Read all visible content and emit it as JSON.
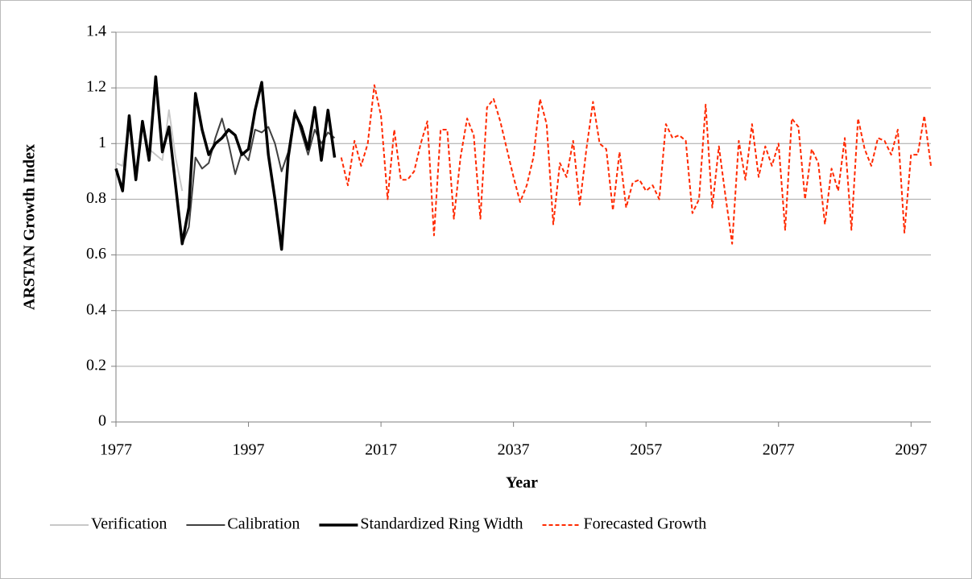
{
  "chart_data": {
    "type": "line",
    "x_label": "Year",
    "y_label": "ARSTAN Growth Index",
    "xlim": [
      1977,
      2100
    ],
    "xticks": [
      1977,
      1997,
      2017,
      2037,
      2057,
      2077,
      2097
    ],
    "ylim": [
      0,
      1.4
    ],
    "yticks": [
      0,
      0.2,
      0.4,
      0.6,
      0.8,
      1,
      1.2,
      1.4
    ],
    "grid": true,
    "legend": "bottom",
    "series": [
      {
        "name": "Verification",
        "color": "#c8c8c8",
        "width": 2,
        "dash": false,
        "x": [
          1977,
          1978,
          1979,
          1980,
          1981,
          1982,
          1983,
          1984,
          1985,
          1986,
          1987
        ],
        "values": [
          0.93,
          0.92,
          1.08,
          0.9,
          1.07,
          0.98,
          0.96,
          0.94,
          1.12,
          0.95,
          0.83
        ]
      },
      {
        "name": "Calibration",
        "color": "#404040",
        "width": 2,
        "dash": false,
        "x": [
          1987,
          1988,
          1989,
          1990,
          1991,
          1992,
          1993,
          1994,
          1995,
          1996,
          1997,
          1998,
          1999,
          2000,
          2001,
          2002,
          2003,
          2004,
          2005,
          2006,
          2007,
          2008,
          2009,
          2010
        ],
        "values": [
          0.64,
          0.7,
          0.95,
          0.91,
          0.93,
          1.02,
          1.09,
          1.0,
          0.89,
          0.97,
          0.94,
          1.05,
          1.04,
          1.06,
          1.0,
          0.9,
          0.97,
          1.12,
          1.04,
          0.96,
          1.05,
          1.0,
          1.04,
          1.02
        ]
      },
      {
        "name": "Standardized Ring Width",
        "color": "#000000",
        "width": 3.5,
        "dash": false,
        "x": [
          1977,
          1978,
          1979,
          1980,
          1981,
          1982,
          1983,
          1984,
          1985,
          1986,
          1987,
          1988,
          1989,
          1990,
          1991,
          1992,
          1993,
          1994,
          1995,
          1996,
          1997,
          1998,
          1999,
          2000,
          2001,
          2002,
          2003,
          2004,
          2005,
          2006,
          2007,
          2008,
          2009,
          2010
        ],
        "values": [
          0.91,
          0.83,
          1.1,
          0.87,
          1.08,
          0.94,
          1.24,
          0.97,
          1.06,
          0.85,
          0.64,
          0.77,
          1.18,
          1.05,
          0.96,
          1.0,
          1.02,
          1.05,
          1.03,
          0.96,
          0.98,
          1.12,
          1.22,
          0.96,
          0.8,
          0.62,
          0.95,
          1.11,
          1.06,
          0.98,
          1.13,
          0.94,
          1.12,
          0.95
        ]
      },
      {
        "name": "Forecasted Growth",
        "color": "#ff2a00",
        "width": 2,
        "dash": true,
        "x": [
          2011,
          2012,
          2013,
          2014,
          2015,
          2016,
          2017,
          2018,
          2019,
          2020,
          2021,
          2022,
          2023,
          2024,
          2025,
          2026,
          2027,
          2028,
          2029,
          2030,
          2031,
          2032,
          2033,
          2034,
          2035,
          2036,
          2037,
          2038,
          2039,
          2040,
          2041,
          2042,
          2043,
          2044,
          2045,
          2046,
          2047,
          2048,
          2049,
          2050,
          2051,
          2052,
          2053,
          2054,
          2055,
          2056,
          2057,
          2058,
          2059,
          2060,
          2061,
          2062,
          2063,
          2064,
          2065,
          2066,
          2067,
          2068,
          2069,
          2070,
          2071,
          2072,
          2073,
          2074,
          2075,
          2076,
          2077,
          2078,
          2079,
          2080,
          2081,
          2082,
          2083,
          2084,
          2085,
          2086,
          2087,
          2088,
          2089,
          2090,
          2091,
          2092,
          2093,
          2094,
          2095,
          2096,
          2097,
          2098,
          2099,
          2100
        ],
        "values": [
          0.95,
          0.85,
          1.01,
          0.92,
          1.0,
          1.21,
          1.1,
          0.8,
          1.05,
          0.87,
          0.87,
          0.9,
          1.0,
          1.08,
          0.67,
          1.05,
          1.05,
          0.73,
          0.95,
          1.09,
          1.03,
          0.73,
          1.13,
          1.16,
          1.08,
          0.98,
          0.88,
          0.79,
          0.85,
          0.95,
          1.16,
          1.07,
          0.71,
          0.93,
          0.88,
          1.01,
          0.78,
          0.98,
          1.15,
          1.0,
          0.98,
          0.76,
          0.97,
          0.77,
          0.86,
          0.87,
          0.83,
          0.85,
          0.8,
          1.07,
          1.02,
          1.03,
          1.01,
          0.75,
          0.8,
          1.14,
          0.77,
          0.99,
          0.81,
          0.64,
          1.01,
          0.87,
          1.07,
          0.88,
          0.99,
          0.92,
          1.0,
          0.69,
          1.09,
          1.06,
          0.8,
          0.98,
          0.93,
          0.71,
          0.91,
          0.83,
          1.02,
          0.69,
          1.09,
          0.98,
          0.92,
          1.02,
          1.01,
          0.96,
          1.05,
          0.68,
          0.96,
          0.96,
          1.1,
          0.92
        ]
      }
    ]
  }
}
